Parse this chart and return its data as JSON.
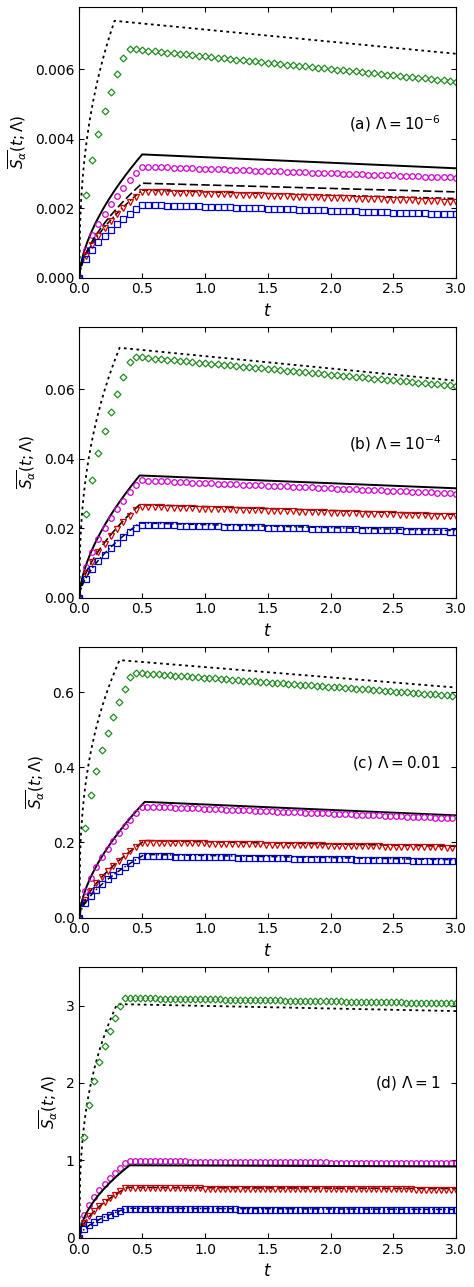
{
  "panels": [
    {
      "label": "(a) $\\Lambda = 10^{-6}$",
      "ylim": [
        0.0,
        0.0078
      ],
      "yticks": [
        0.0,
        0.002,
        0.004,
        0.006
      ],
      "yticklabels": [
        "0.000",
        "0.002",
        "0.004",
        "0.006"
      ],
      "curves": [
        {
          "name": "dotted",
          "peak_t": 0.28,
          "peak_v": 0.0074,
          "end_v": 0.00645,
          "color": "#000000",
          "ls": "dotted",
          "lw": 1.3,
          "marker": null,
          "ms": 0,
          "mev": 1,
          "rise_exp": 0.4
        },
        {
          "name": "green",
          "peak_t": 0.38,
          "peak_v": 0.0066,
          "end_v": 0.00565,
          "color": "#228B22",
          "ls": "none",
          "lw": 0,
          "marker": "D",
          "ms": 3.5,
          "mev": 10,
          "rise_exp": 0.5
        },
        {
          "name": "black_solid",
          "peak_t": 0.5,
          "peak_v": 0.00355,
          "end_v": 0.00315,
          "color": "#000000",
          "ls": "solid",
          "lw": 1.4,
          "marker": null,
          "ms": 0,
          "mev": 1,
          "rise_exp": 0.6
        },
        {
          "name": "magenta",
          "peak_t": 0.5,
          "peak_v": 0.0032,
          "end_v": 0.00288,
          "color": "#CC00CC",
          "ls": "none",
          "lw": 0,
          "marker": "o",
          "ms": 4.0,
          "mev": 10,
          "rise_exp": 0.6
        },
        {
          "name": "black_dash",
          "peak_t": 0.5,
          "peak_v": 0.00272,
          "end_v": 0.00247,
          "color": "#000000",
          "ls": "dashed",
          "lw": 1.2,
          "marker": null,
          "ms": 0,
          "mev": 1,
          "rise_exp": 0.6
        },
        {
          "name": "black_dashdot",
          "peak_t": 0.5,
          "peak_v": 0.00252,
          "end_v": 0.00228,
          "color": "#000000",
          "ls": "dashdot",
          "lw": 1.1,
          "marker": null,
          "ms": 0,
          "mev": 1,
          "rise_exp": 0.6
        },
        {
          "name": "red",
          "peak_t": 0.5,
          "peak_v": 0.00248,
          "end_v": 0.00218,
          "color": "#CC0000",
          "ls": "none",
          "lw": 0,
          "marker": "v",
          "ms": 4.0,
          "mev": 10,
          "rise_exp": 0.6
        },
        {
          "name": "blue",
          "peak_t": 0.5,
          "peak_v": 0.0021,
          "end_v": 0.00182,
          "color": "#0000CC",
          "ls": "none",
          "lw": 0,
          "marker": "s",
          "ms": 4.0,
          "mev": 10,
          "rise_exp": 0.6
        }
      ]
    },
    {
      "label": "(b) $\\Lambda = 10^{-4}$",
      "ylim": [
        0.0,
        0.078
      ],
      "yticks": [
        0.0,
        0.02,
        0.04,
        0.06
      ],
      "yticklabels": [
        "0.00",
        "0.02",
        "0.04",
        "0.06"
      ],
      "curves": [
        {
          "name": "dotted",
          "peak_t": 0.32,
          "peak_v": 0.072,
          "end_v": 0.0625,
          "color": "#000000",
          "ls": "dotted",
          "lw": 1.3,
          "marker": null,
          "ms": 0,
          "mev": 1,
          "rise_exp": 0.4
        },
        {
          "name": "green",
          "peak_t": 0.42,
          "peak_v": 0.0695,
          "end_v": 0.061,
          "color": "#228B22",
          "ls": "none",
          "lw": 0,
          "marker": "D",
          "ms": 3.5,
          "mev": 10,
          "rise_exp": 0.5
        },
        {
          "name": "black_solid",
          "peak_t": 0.48,
          "peak_v": 0.0352,
          "end_v": 0.0315,
          "color": "#000000",
          "ls": "solid",
          "lw": 1.4,
          "marker": null,
          "ms": 0,
          "mev": 1,
          "rise_exp": 0.6
        },
        {
          "name": "magenta",
          "peak_t": 0.48,
          "peak_v": 0.0338,
          "end_v": 0.03,
          "color": "#CC00CC",
          "ls": "none",
          "lw": 0,
          "marker": "o",
          "ms": 4.0,
          "mev": 10,
          "rise_exp": 0.6
        },
        {
          "name": "black_dash",
          "peak_t": 0.48,
          "peak_v": 0.0268,
          "end_v": 0.024,
          "color": "#000000",
          "ls": "dashed",
          "lw": 1.2,
          "marker": null,
          "ms": 0,
          "mev": 1,
          "rise_exp": 0.6
        },
        {
          "name": "red",
          "peak_t": 0.48,
          "peak_v": 0.0262,
          "end_v": 0.0234,
          "color": "#CC0000",
          "ls": "none",
          "lw": 0,
          "marker": "v",
          "ms": 4.0,
          "mev": 10,
          "rise_exp": 0.6
        },
        {
          "name": "black_dashdot",
          "peak_t": 0.48,
          "peak_v": 0.0215,
          "end_v": 0.0193,
          "color": "#000000",
          "ls": "dashdot",
          "lw": 1.1,
          "marker": null,
          "ms": 0,
          "mev": 1,
          "rise_exp": 0.6
        },
        {
          "name": "blue",
          "peak_t": 0.48,
          "peak_v": 0.021,
          "end_v": 0.019,
          "color": "#0000CC",
          "ls": "none",
          "lw": 0,
          "marker": "s",
          "ms": 4.0,
          "mev": 10,
          "rise_exp": 0.6
        }
      ]
    },
    {
      "label": "(c) $\\Lambda = 0.01$",
      "ylim": [
        0.0,
        0.72
      ],
      "yticks": [
        0.0,
        0.2,
        0.4,
        0.6
      ],
      "yticklabels": [
        "0.0",
        "0.2",
        "0.4",
        "0.6"
      ],
      "curves": [
        {
          "name": "dotted",
          "peak_t": 0.32,
          "peak_v": 0.685,
          "end_v": 0.612,
          "color": "#000000",
          "ls": "dotted",
          "lw": 1.3,
          "marker": null,
          "ms": 0,
          "mev": 1,
          "rise_exp": 0.35
        },
        {
          "name": "green",
          "peak_t": 0.42,
          "peak_v": 0.652,
          "end_v": 0.59,
          "color": "#228B22",
          "ls": "none",
          "lw": 0,
          "marker": "D",
          "ms": 3.5,
          "mev": 9,
          "rise_exp": 0.45
        },
        {
          "name": "black_solid",
          "peak_t": 0.52,
          "peak_v": 0.308,
          "end_v": 0.272,
          "color": "#000000",
          "ls": "solid",
          "lw": 1.4,
          "marker": null,
          "ms": 0,
          "mev": 1,
          "rise_exp": 0.6
        },
        {
          "name": "magenta",
          "peak_t": 0.5,
          "peak_v": 0.296,
          "end_v": 0.264,
          "color": "#CC00CC",
          "ls": "none",
          "lw": 0,
          "marker": "o",
          "ms": 4.0,
          "mev": 9,
          "rise_exp": 0.6
        },
        {
          "name": "black_dash",
          "peak_t": 0.52,
          "peak_v": 0.205,
          "end_v": 0.19,
          "color": "#000000",
          "ls": "dashed",
          "lw": 1.2,
          "marker": null,
          "ms": 0,
          "mev": 1,
          "rise_exp": 0.6
        },
        {
          "name": "red",
          "peak_t": 0.5,
          "peak_v": 0.2,
          "end_v": 0.186,
          "color": "#CC0000",
          "ls": "none",
          "lw": 0,
          "marker": "v",
          "ms": 4.0,
          "mev": 9,
          "rise_exp": 0.6
        },
        {
          "name": "black_dashdot",
          "peak_t": 0.52,
          "peak_v": 0.168,
          "end_v": 0.154,
          "color": "#000000",
          "ls": "dashdot",
          "lw": 1.1,
          "marker": null,
          "ms": 0,
          "mev": 1,
          "rise_exp": 0.6
        },
        {
          "name": "blue",
          "peak_t": 0.5,
          "peak_v": 0.164,
          "end_v": 0.15,
          "color": "#0000CC",
          "ls": "none",
          "lw": 0,
          "marker": "s",
          "ms": 4.0,
          "mev": 9,
          "rise_exp": 0.6
        }
      ]
    },
    {
      "label": "(d) $\\Lambda = 1$",
      "ylim": [
        0.0,
        3.5
      ],
      "yticks": [
        0,
        1,
        2,
        3
      ],
      "yticklabels": [
        "0",
        "1",
        "2",
        "3"
      ],
      "curves": [
        {
          "name": "dotted",
          "peak_t": 0.3,
          "peak_v": 3.02,
          "end_v": 2.93,
          "color": "#000000",
          "ls": "dotted",
          "lw": 1.3,
          "marker": null,
          "ms": 0,
          "mev": 1,
          "rise_exp": 0.35
        },
        {
          "name": "green",
          "peak_t": 0.35,
          "peak_v": 3.1,
          "end_v": 3.03,
          "color": "#228B22",
          "ls": "none",
          "lw": 0,
          "marker": "D",
          "ms": 3.5,
          "mev": 8,
          "rise_exp": 0.4
        },
        {
          "name": "magenta",
          "peak_t": 0.38,
          "peak_v": 0.99,
          "end_v": 0.96,
          "color": "#CC00CC",
          "ls": "none",
          "lw": 0,
          "marker": "o",
          "ms": 4.0,
          "mev": 8,
          "rise_exp": 0.55
        },
        {
          "name": "black_solid",
          "peak_t": 0.4,
          "peak_v": 0.935,
          "end_v": 0.92,
          "color": "#000000",
          "ls": "solid",
          "lw": 1.4,
          "marker": null,
          "ms": 0,
          "mev": 1,
          "rise_exp": 0.55
        },
        {
          "name": "black_dash",
          "peak_t": 0.38,
          "peak_v": 0.65,
          "end_v": 0.635,
          "color": "#000000",
          "ls": "dashed",
          "lw": 1.2,
          "marker": null,
          "ms": 0,
          "mev": 1,
          "rise_exp": 0.55
        },
        {
          "name": "red",
          "peak_t": 0.36,
          "peak_v": 0.64,
          "end_v": 0.62,
          "color": "#CC0000",
          "ls": "none",
          "lw": 0,
          "marker": "v",
          "ms": 4.0,
          "mev": 8,
          "rise_exp": 0.55
        },
        {
          "name": "black_dashdot",
          "peak_t": 0.38,
          "peak_v": 0.38,
          "end_v": 0.365,
          "color": "#000000",
          "ls": "dashdot",
          "lw": 1.1,
          "marker": null,
          "ms": 0,
          "mev": 1,
          "rise_exp": 0.55
        },
        {
          "name": "blue",
          "peak_t": 0.36,
          "peak_v": 0.37,
          "end_v": 0.352,
          "color": "#0000CC",
          "ls": "none",
          "lw": 0,
          "marker": "s",
          "ms": 4.0,
          "mev": 8,
          "rise_exp": 0.55
        }
      ]
    }
  ],
  "xlim": [
    0.0,
    3.0
  ],
  "xticks": [
    0.0,
    0.5,
    1.0,
    1.5,
    2.0,
    2.5,
    3.0
  ],
  "xticklabels": [
    "0.0",
    "0.5",
    "1.0",
    "1.5",
    "2.0",
    "2.5",
    "3.0"
  ]
}
